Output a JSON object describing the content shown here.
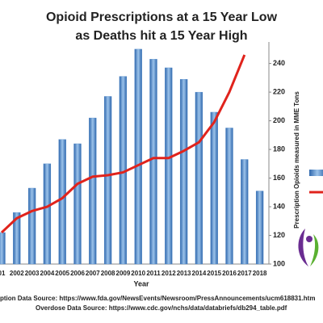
{
  "chart_data": {
    "type": "bar",
    "title": "Opioid Prescriptions at a 15 Year Low",
    "subtitle": "as Deaths hit a 15 Year High",
    "x_label": "Year",
    "y2_label": "Prescription Opioids measured in MME Tons",
    "categories": [
      "01",
      "2002",
      "2003",
      "2004",
      "2005",
      "2006",
      "2007",
      "2008",
      "2009",
      "2010",
      "2011",
      "2012",
      "2013",
      "2014",
      "2015",
      "2016",
      "2017",
      "2018"
    ],
    "series": [
      {
        "type": "bar",
        "color": "#4a86c8",
        "axis": "y2",
        "values": [
          122,
          136,
          153,
          170,
          187,
          184,
          202,
          217,
          231,
          250,
          243,
          237,
          229,
          220,
          206,
          195,
          173,
          151
        ]
      },
      {
        "type": "line",
        "color": "#e0231c",
        "axis": "y2",
        "values": [
          122,
          132,
          137,
          140,
          146,
          156,
          161,
          162,
          164,
          169,
          174,
          174,
          179,
          185,
          199,
          220,
          246,
          null
        ]
      }
    ],
    "y2lim": [
      100,
      255
    ],
    "y2ticks": [
      100,
      120,
      140,
      160,
      180,
      200,
      220,
      240
    ],
    "sources": [
      "ption Data Source: https://www.fda.gov/NewsEvents/Newsroom/PressAnnouncements/ucm618831.htm",
      "Overdose Data Source:  https://www.cdc.gov/nchs/data/databriefs/db294_table.pdf"
    ]
  }
}
